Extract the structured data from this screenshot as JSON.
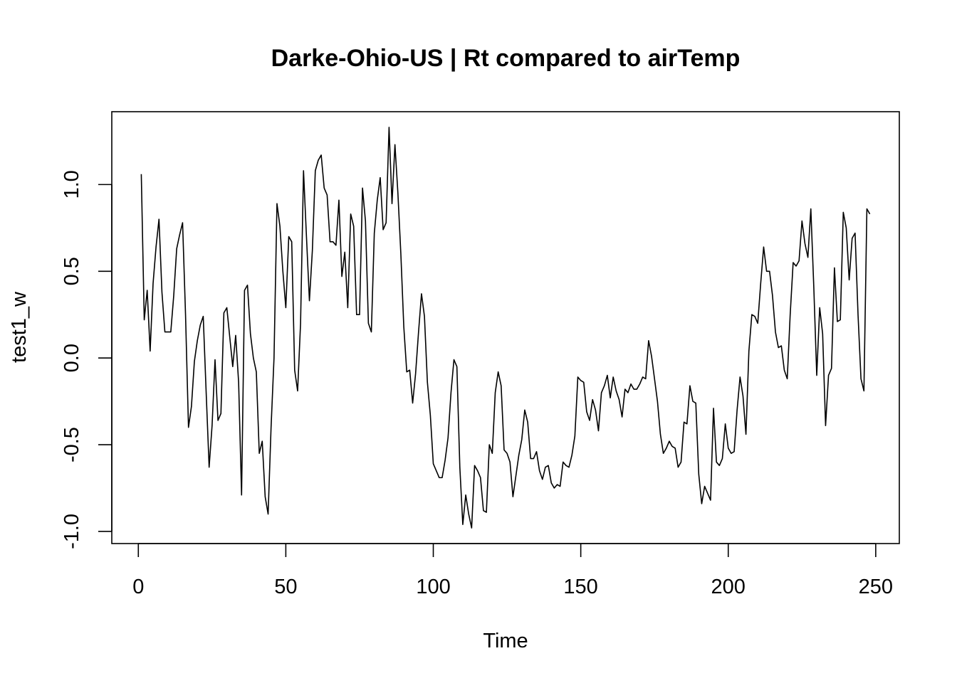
{
  "chart_data": {
    "type": "line",
    "title": "Darke-Ohio-US | Rt compared to airTemp",
    "xlabel": "Time",
    "ylabel": "test1_w",
    "xlim": [
      -9,
      258
    ],
    "ylim": [
      -1.07,
      1.42
    ],
    "x_ticks": [
      0,
      50,
      100,
      150,
      200,
      250
    ],
    "x_tick_labels": [
      "0",
      "50",
      "100",
      "150",
      "200",
      "250"
    ],
    "y_ticks": [
      -1.0,
      -0.5,
      0.0,
      0.5,
      1.0
    ],
    "y_tick_labels": [
      "-1.0",
      "-0.5",
      "0.0",
      "0.5",
      "1.0"
    ],
    "grid": false,
    "legend": "none",
    "x_start": 1,
    "series": [
      {
        "values": [
          1.06,
          0.22,
          0.39,
          0.04,
          0.43,
          0.64,
          0.8,
          0.38,
          0.15,
          0.15,
          0.15,
          0.36,
          0.63,
          0.71,
          0.78,
          0.25,
          -0.4,
          -0.28,
          -0.02,
          0.1,
          0.19,
          0.24,
          -0.2,
          -0.63,
          -0.39,
          -0.01,
          -0.36,
          -0.32,
          0.26,
          0.29,
          0.12,
          -0.05,
          0.13,
          -0.14,
          -0.79,
          0.39,
          0.42,
          0.14,
          0.0,
          -0.08,
          -0.55,
          -0.48,
          -0.8,
          -0.9,
          -0.4,
          0.0,
          0.89,
          0.76,
          0.5,
          0.29,
          0.7,
          0.67,
          -0.07,
          -0.19,
          0.2,
          1.08,
          0.7,
          0.33,
          0.62,
          1.08,
          1.14,
          1.17,
          0.98,
          0.94,
          0.67,
          0.67,
          0.65,
          0.91,
          0.47,
          0.61,
          0.29,
          0.83,
          0.76,
          0.25,
          0.25,
          0.98,
          0.79,
          0.2,
          0.15,
          0.72,
          0.91,
          1.04,
          0.74,
          0.78,
          1.33,
          0.89,
          1.23,
          0.95,
          0.6,
          0.18,
          -0.08,
          -0.07,
          -0.26,
          -0.09,
          0.15,
          0.37,
          0.24,
          -0.14,
          -0.33,
          -0.61,
          -0.65,
          -0.69,
          -0.69,
          -0.59,
          -0.46,
          -0.2,
          -0.01,
          -0.05,
          -0.63,
          -0.96,
          -0.79,
          -0.9,
          -0.98,
          -0.62,
          -0.65,
          -0.69,
          -0.88,
          -0.89,
          -0.5,
          -0.55,
          -0.2,
          -0.08,
          -0.16,
          -0.53,
          -0.55,
          -0.6,
          -0.8,
          -0.68,
          -0.56,
          -0.47,
          -0.3,
          -0.37,
          -0.58,
          -0.58,
          -0.54,
          -0.65,
          -0.7,
          -0.63,
          -0.62,
          -0.72,
          -0.75,
          -0.73,
          -0.74,
          -0.6,
          -0.62,
          -0.63,
          -0.56,
          -0.45,
          -0.11,
          -0.13,
          -0.14,
          -0.31,
          -0.36,
          -0.24,
          -0.3,
          -0.42,
          -0.2,
          -0.16,
          -0.1,
          -0.23,
          -0.11,
          -0.19,
          -0.24,
          -0.34,
          -0.18,
          -0.2,
          -0.15,
          -0.18,
          -0.18,
          -0.15,
          -0.11,
          -0.12,
          0.1,
          0.01,
          -0.12,
          -0.25,
          -0.44,
          -0.55,
          -0.52,
          -0.48,
          -0.51,
          -0.52,
          -0.63,
          -0.6,
          -0.37,
          -0.38,
          -0.16,
          -0.25,
          -0.26,
          -0.67,
          -0.84,
          -0.74,
          -0.78,
          -0.82,
          -0.29,
          -0.6,
          -0.62,
          -0.58,
          -0.38,
          -0.52,
          -0.55,
          -0.54,
          -0.3,
          -0.11,
          -0.22,
          -0.44,
          0.04,
          0.25,
          0.24,
          0.2,
          0.43,
          0.64,
          0.5,
          0.5,
          0.36,
          0.15,
          0.06,
          0.07,
          -0.07,
          -0.12,
          0.25,
          0.55,
          0.53,
          0.56,
          0.79,
          0.66,
          0.58,
          0.86,
          0.41,
          -0.1,
          0.29,
          0.14,
          -0.39,
          -0.1,
          -0.06,
          0.52,
          0.21,
          0.22,
          0.84,
          0.75,
          0.45,
          0.69,
          0.72,
          0.25,
          -0.12,
          -0.19,
          0.86,
          0.83
        ]
      }
    ]
  }
}
